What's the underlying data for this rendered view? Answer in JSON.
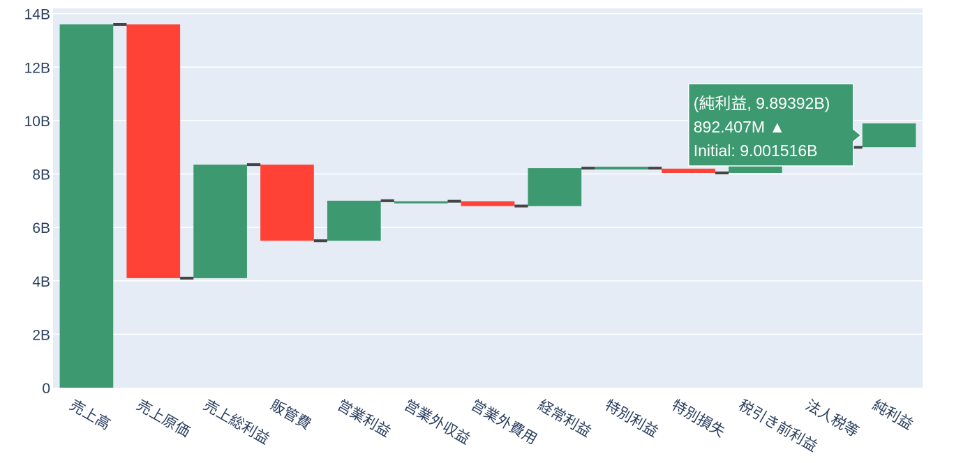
{
  "chart_data": {
    "type": "waterfall",
    "categories": [
      "売上高",
      "売上原価",
      "売上総利益",
      "販管費",
      "営業利益",
      "営業外収益",
      "営業外費用",
      "経常利益",
      "特別利益",
      "特別損失",
      "税引き前利益",
      "法人税等",
      "純利益"
    ],
    "bars": [
      {
        "base": 0,
        "value": 13.6
      },
      {
        "base": 13.6,
        "value": 4.1
      },
      {
        "base": 4.1,
        "value": 8.35
      },
      {
        "base": 8.35,
        "value": 5.5
      },
      {
        "base": 5.5,
        "value": 7.0
      },
      {
        "base": 6.9,
        "value": 6.98
      },
      {
        "base": 6.98,
        "value": 6.8
      },
      {
        "base": 6.8,
        "value": 8.22
      },
      {
        "base": 8.22,
        "value": 8.22
      },
      {
        "base": 8.2,
        "value": 8.04
      },
      {
        "base": 8.04,
        "value": 9.0
      },
      {
        "base": 9.0,
        "value": 9.0
      },
      {
        "base": 9.001516,
        "value": 9.89392
      }
    ],
    "yaxis": {
      "range": [
        0,
        14.2
      ],
      "ticks": [
        0,
        2,
        4,
        6,
        8,
        10,
        12,
        14
      ],
      "tick_labels": [
        "0",
        "2B",
        "4B",
        "6B",
        "8B",
        "10B",
        "12B",
        "14B"
      ]
    },
    "colors": {
      "increase": "#3d9970",
      "decrease": "#ff4136",
      "connector": "#444444",
      "plot_bg": "#e5ecf6",
      "grid": "#ffffff",
      "tooltip_bg": "#3d9970"
    },
    "tooltip": {
      "index": 12,
      "lines": [
        "(純利益, 9.89392B)",
        "892.407M ▲",
        "Initial: 9.001516B"
      ]
    }
  }
}
